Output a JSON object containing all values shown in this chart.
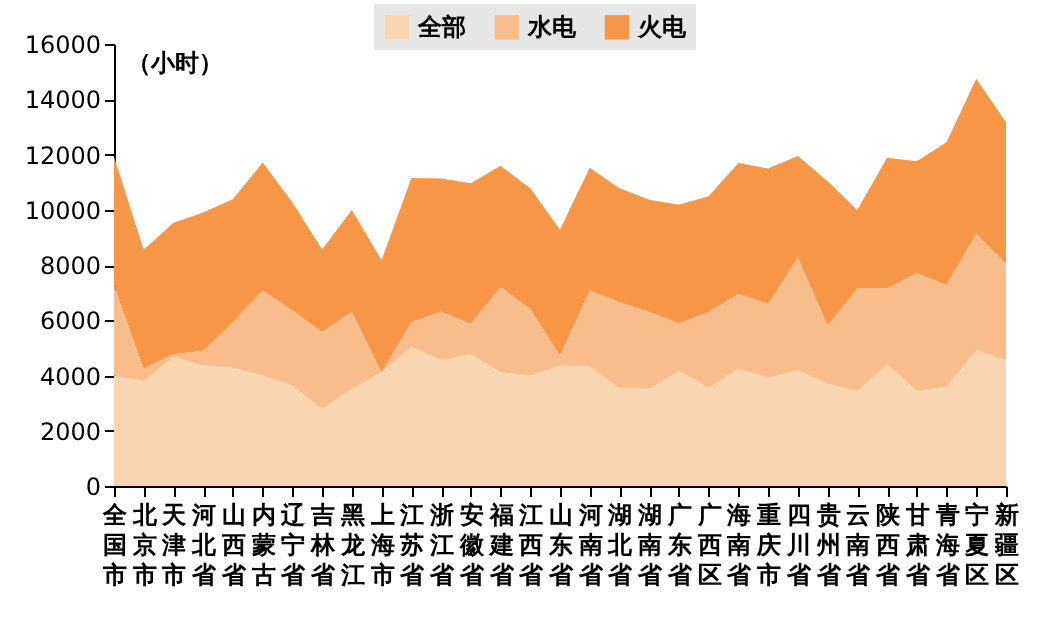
{
  "chart_data": {
    "type": "area",
    "stacked": true,
    "ylabel": "（小时）",
    "legend": "top",
    "grid": false,
    "categories": [
      "全国市",
      "北京市",
      "天津市",
      "河北省",
      "山西省",
      "内蒙古",
      "辽宁省",
      "吉林省",
      "黑龙江",
      "上海市",
      "江苏省",
      "浙江省",
      "安徽省",
      "福建省",
      "江西省",
      "山东省",
      "河南省",
      "湖北省",
      "湖南省",
      "广东省",
      "广西区",
      "海南省",
      "重庆市",
      "四川省",
      "贵州省",
      "云南省",
      "陕西省",
      "甘肃省",
      "青海省",
      "宁夏区",
      "新疆区"
    ],
    "ylim": [
      0,
      16000
    ],
    "yticks": [
      0,
      2000,
      4000,
      6000,
      8000,
      10000,
      12000,
      14000,
      16000
    ],
    "series": [
      {
        "name": "全部",
        "color": "#fad5b2",
        "values": [
          4000,
          3800,
          4680,
          4360,
          4290,
          4000,
          3640,
          2790,
          3520,
          4120,
          5040,
          4560,
          4780,
          4120,
          4000,
          4360,
          4320,
          3560,
          3520,
          4170,
          3560,
          4240,
          3930,
          4190,
          3710,
          3440,
          4410,
          3440,
          3590,
          4920,
          4560
        ]
      },
      {
        "name": "水电",
        "color": "#f8bd8b",
        "values": [
          3270,
          450,
          100,
          540,
          1650,
          3080,
          2720,
          2790,
          2790,
          0,
          900,
          1750,
          1090,
          3080,
          2420,
          360,
          2760,
          3100,
          2790,
          1720,
          2740,
          2720,
          2660,
          4100,
          2110,
          3710,
          2740,
          4270,
          3690,
          4220,
          3490
        ]
      },
      {
        "name": "火电",
        "color": "#f79646",
        "values": [
          4650,
          4300,
          4750,
          5000,
          4440,
          4630,
          3900,
          2980,
          3680,
          4050,
          5210,
          4820,
          5090,
          4390,
          4360,
          4560,
          4440,
          4120,
          4050,
          4290,
          4190,
          4730,
          4900,
          3660,
          5210,
          2840,
          4730,
          4050,
          5160,
          5600,
          5120
        ]
      }
    ]
  }
}
